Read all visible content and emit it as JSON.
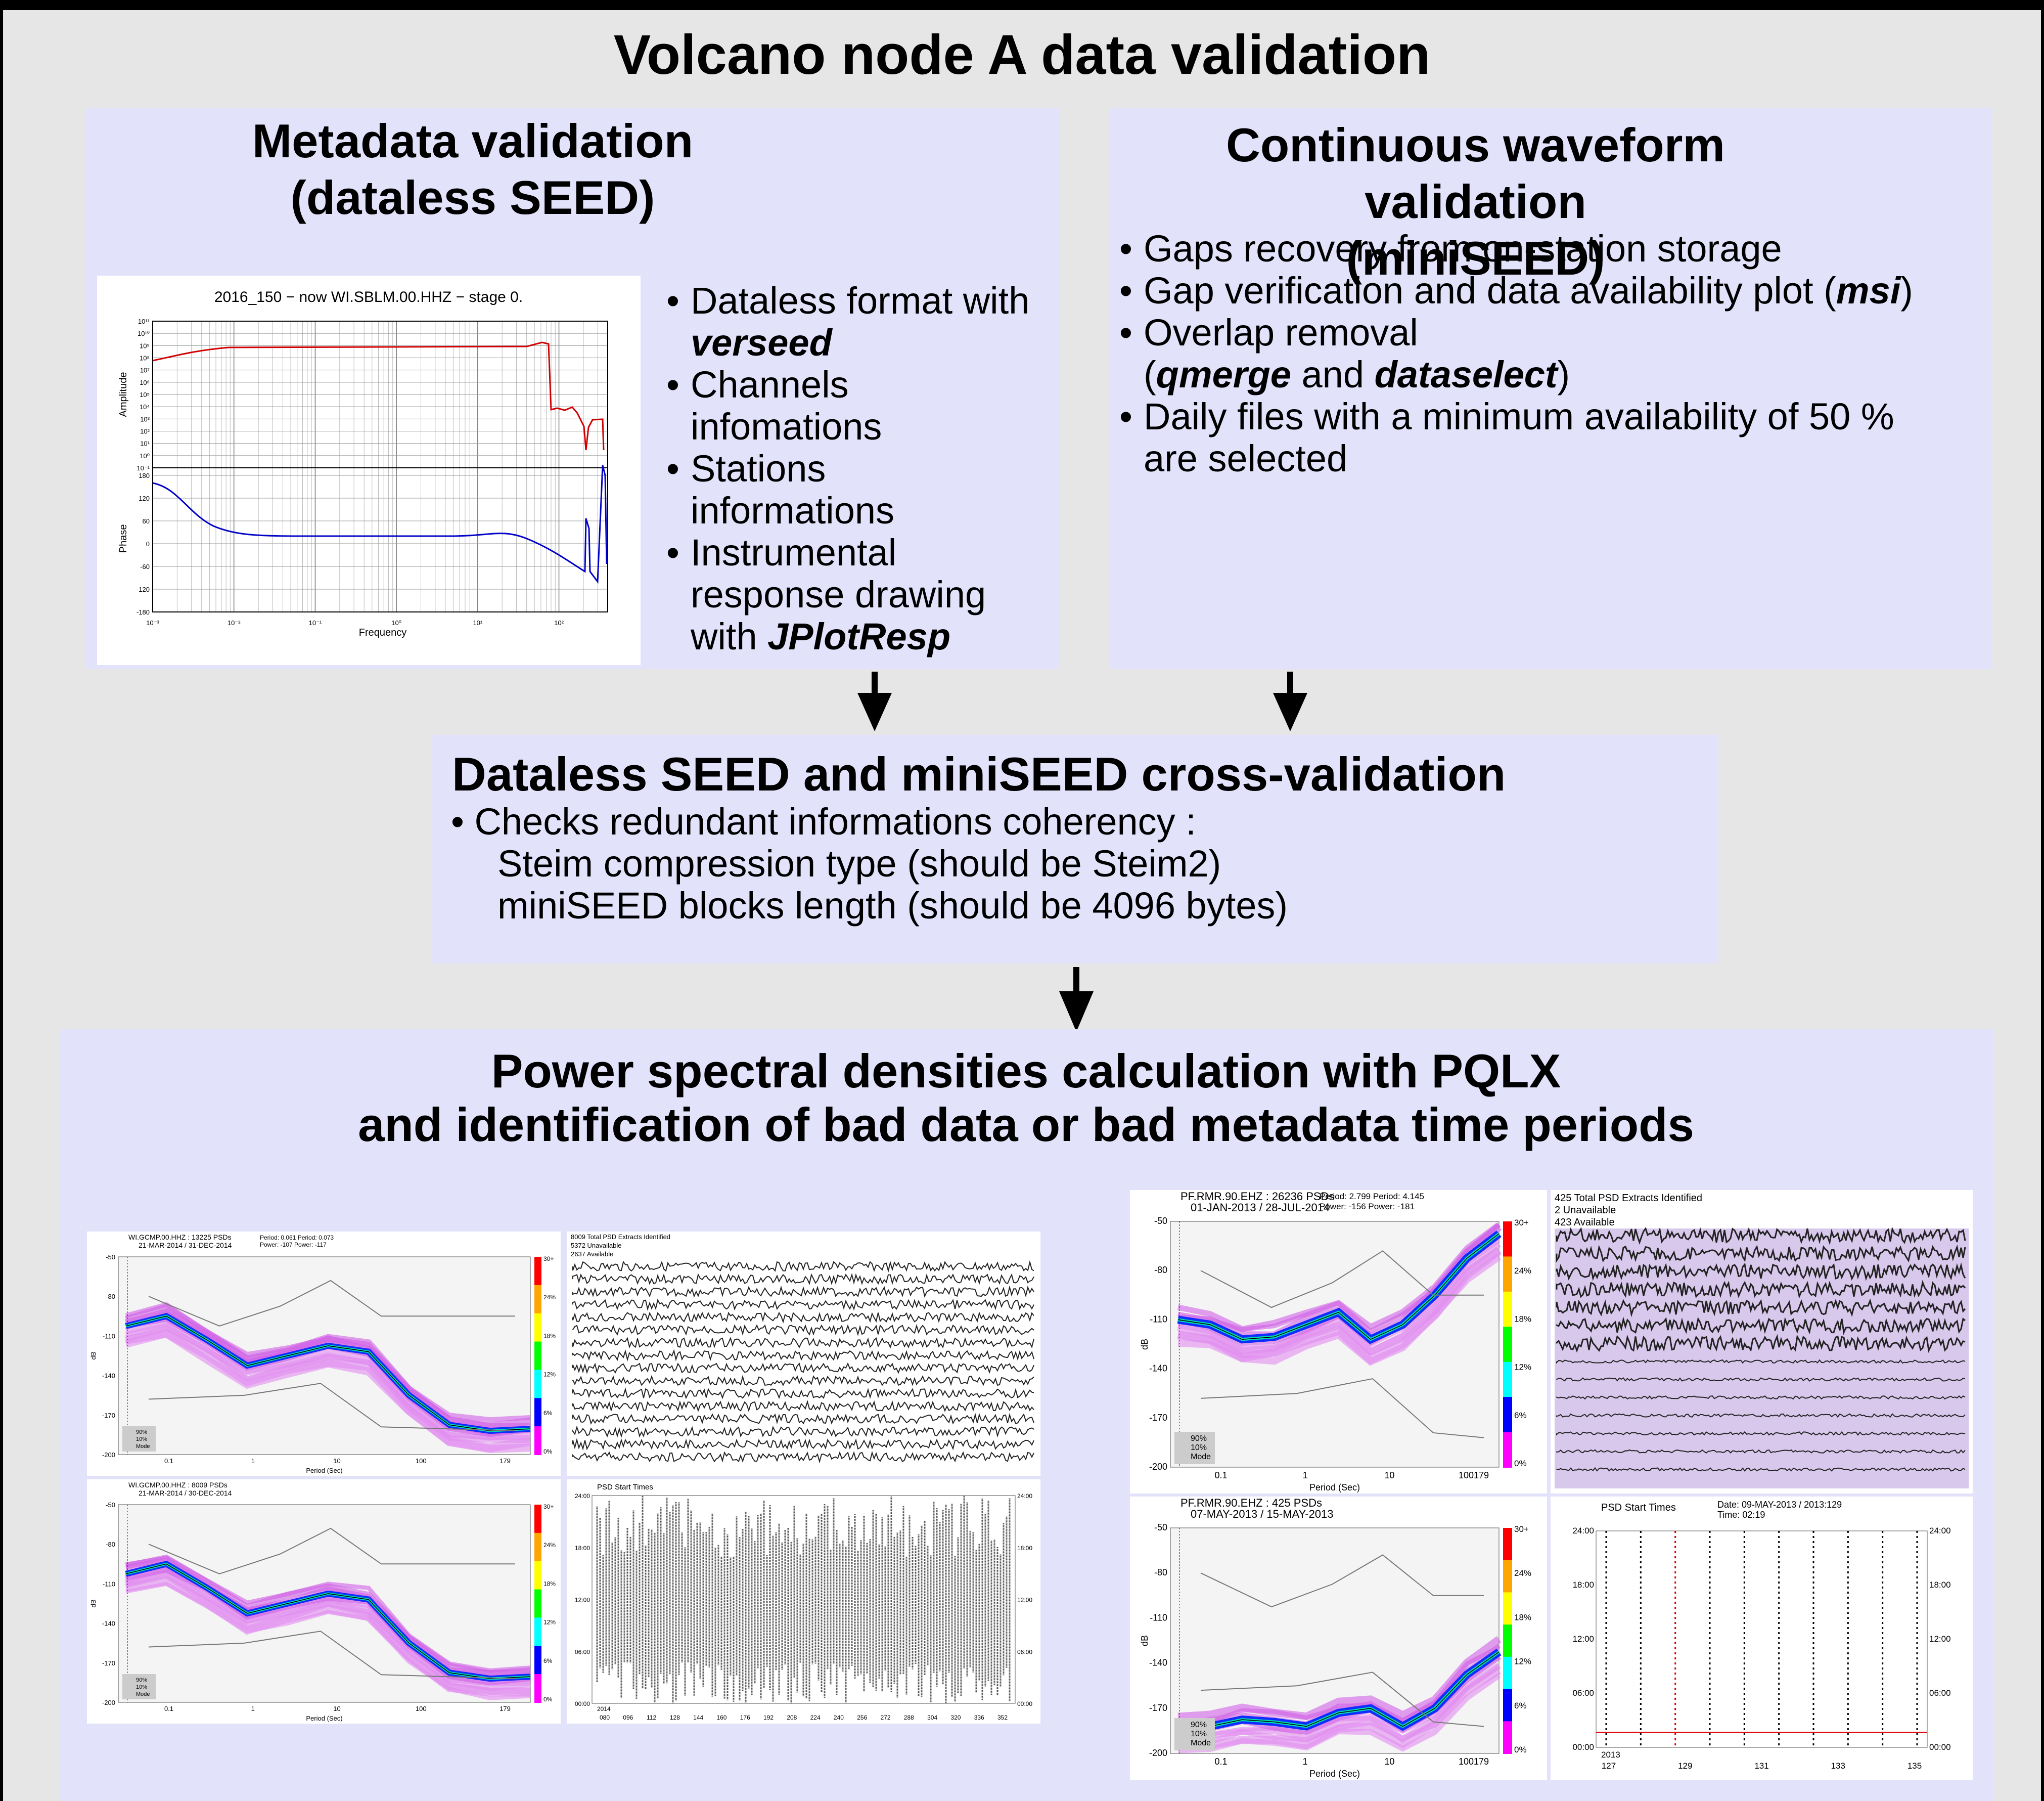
{
  "title": "Volcano node A data validation",
  "metadata_panel": {
    "title_line1": "Metadata validation",
    "title_line2": "(dataless SEED)",
    "bullets": [
      {
        "pre": "Dataless format with ",
        "em": "verseed",
        "post": ""
      },
      {
        "pre": "Channels infomations",
        "em": "",
        "post": ""
      },
      {
        "pre": "Stations informations",
        "em": "",
        "post": ""
      },
      {
        "pre": "Instrumental response drawing with ",
        "em": "JPlotResp",
        "post": ""
      }
    ],
    "resp_plot": {
      "title": "2016_150 − now   WI.SBLM.00.HHZ − stage 0.",
      "amp_label": "Amplitude",
      "phase_label": "Phase",
      "xlabel": "Frequency",
      "amp_ticks": [
        "10¹¹",
        "10¹⁰",
        "10⁹",
        "10⁸",
        "10⁷",
        "10⁶",
        "10⁵",
        "10⁴",
        "10³",
        "10²",
        "10¹",
        "10⁰",
        "10⁻¹"
      ],
      "phase_ticks": [
        "180",
        "120",
        "60",
        "0",
        "-60",
        "-120",
        "-180"
      ],
      "x_ticks": [
        "10⁻³",
        "10⁻²",
        "10⁻¹",
        "10⁰",
        "10¹",
        "10²"
      ]
    }
  },
  "waveform_panel": {
    "title_line1": "Continuous waveform validation",
    "title_line2": "(miniSEED)",
    "bullets": [
      {
        "pre": "Gaps recovery from on-station storage",
        "em": "",
        "post": ""
      },
      {
        "pre": "Gap verification and data availability plot (",
        "em": "msi",
        "post": ")"
      },
      {
        "pre": "Overlap removal",
        "em": "",
        "post": ""
      },
      {
        "pre": "Daily files with a minimum availability of 50 % are selected",
        "em": "",
        "post": ""
      }
    ],
    "overlap_detail": {
      "open": " (",
      "em1": "qmerge",
      "and": " and ",
      "em2": "dataselect",
      "close": ")"
    }
  },
  "cross_panel": {
    "title": "Dataless SEED and miniSEED cross-validation",
    "bullet": "Checks redundant informations coherency :",
    "line1": "Steim compression type (should be Steim2)",
    "line2": "miniSEED blocks length (should be 4096 bytes)"
  },
  "psd_panel": {
    "title_line1": "Power spectral densities calculation with PQLX",
    "title_line2": "and identification of bad data or bad metadata time periods",
    "plots": {
      "a": {
        "header": "WI.GCMP.00.HHZ : 13225 PSDs",
        "dates": "21-MAR-2014 / 31-DEC-2014",
        "period": "Period:  0.061    Period:  0.073",
        "power": "Power:  -107     Power:  -117"
      },
      "b": {
        "l1": "8009 Total PSD Extracts Identified",
        "l2": "5372 Unavailable",
        "l3": "2637  Available"
      },
      "c": {
        "header": "WI.GCMP.00.HHZ : 8009 PSDs",
        "dates": "21-MAR-2014 / 30-DEC-2014"
      },
      "d": {
        "title": "PSD Start Times",
        "year": "2014",
        "x_ticks": [
          "080",
          "096",
          "112",
          "128",
          "144",
          "160",
          "176",
          "192",
          "208",
          "224",
          "240",
          "256",
          "272",
          "288",
          "304",
          "320",
          "336",
          "352"
        ]
      },
      "e": {
        "header": "PF.RMR.90.EHZ : 26236 PSDs",
        "dates": "01-JAN-2013 / 28-JUL-2014",
        "period": "Period:  2.799    Period:  4.145",
        "power": "Power:    -156    Power:    -181"
      },
      "f": {
        "l1": "425 Total PSD Extracts Identified",
        "l2": "2 Unavailable",
        "l3": "423 Available"
      },
      "g": {
        "header": "PF.RMR.90.EHZ : 425 PSDs",
        "dates": "07-MAY-2013 / 15-MAY-2013"
      },
      "h": {
        "title": "PSD Start Times",
        "date": "Date:  09-MAY-2013 / 2013:129",
        "time": "Time:   02:19",
        "year": "2013",
        "x_ticks": [
          "127",
          "129",
          "131",
          "133",
          "135"
        ]
      }
    },
    "db_ticks": [
      "-50",
      "-80",
      "-110",
      "-140",
      "-170",
      "-200"
    ],
    "period_ticks": [
      "0.1",
      "1",
      "10",
      "100",
      "179"
    ],
    "period_ticks_alt": [
      "0.1",
      "1",
      "10",
      "100179"
    ],
    "colorbar_ticks": [
      "30+",
      "24%",
      "18%",
      "12%",
      "6%",
      "0%"
    ],
    "legend": [
      "90%",
      "10%",
      "Mode"
    ],
    "ylabel": "dB",
    "xlabel": "Period (Sec)",
    "hour_ticks": [
      "24:00",
      "18:00",
      "12:00",
      "06:00",
      "00:00"
    ]
  }
}
